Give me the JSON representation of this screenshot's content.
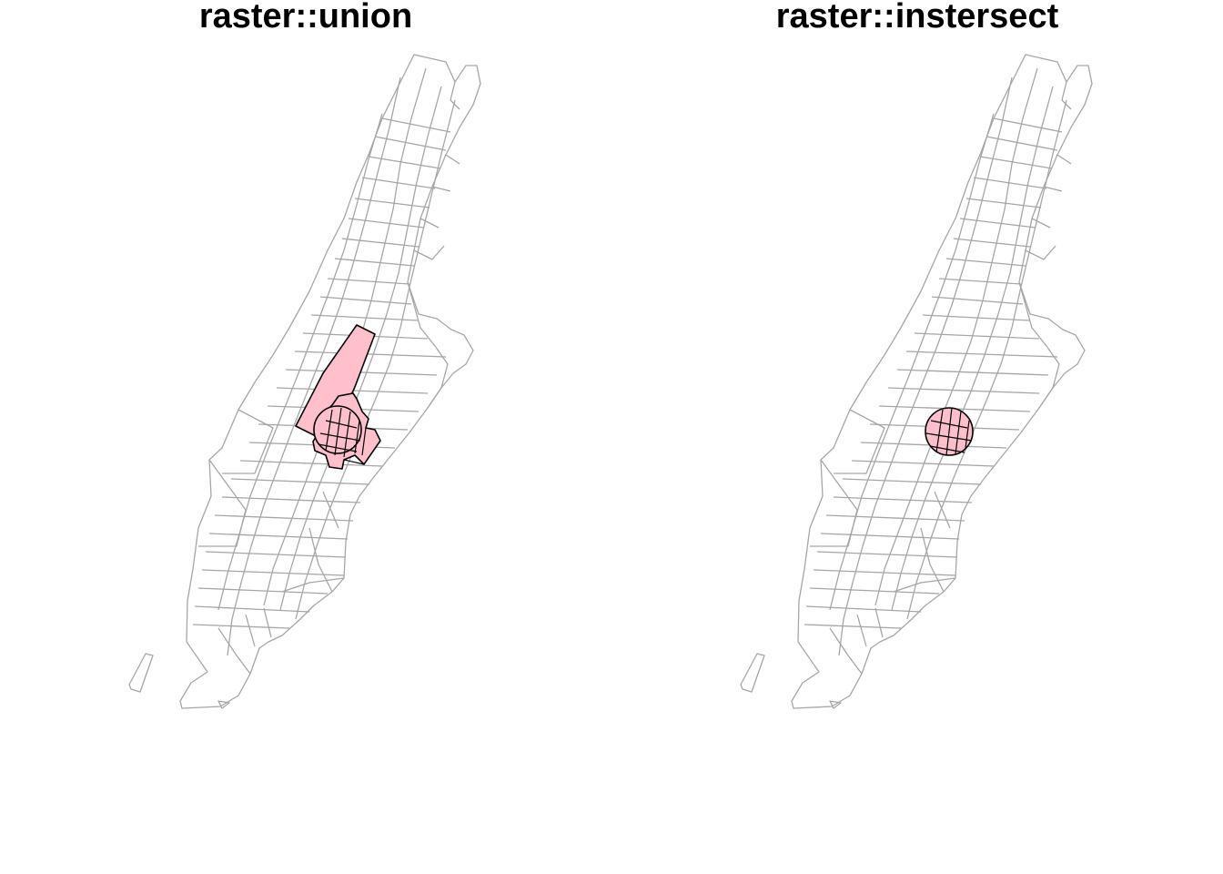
{
  "panels": [
    {
      "title": "raster::union"
    },
    {
      "title": "raster::instersect"
    }
  ],
  "colors": {
    "tract_stroke": "#a6a6a6",
    "highlight_fill": "#ffc0cb",
    "highlight_stroke": "#000000"
  }
}
